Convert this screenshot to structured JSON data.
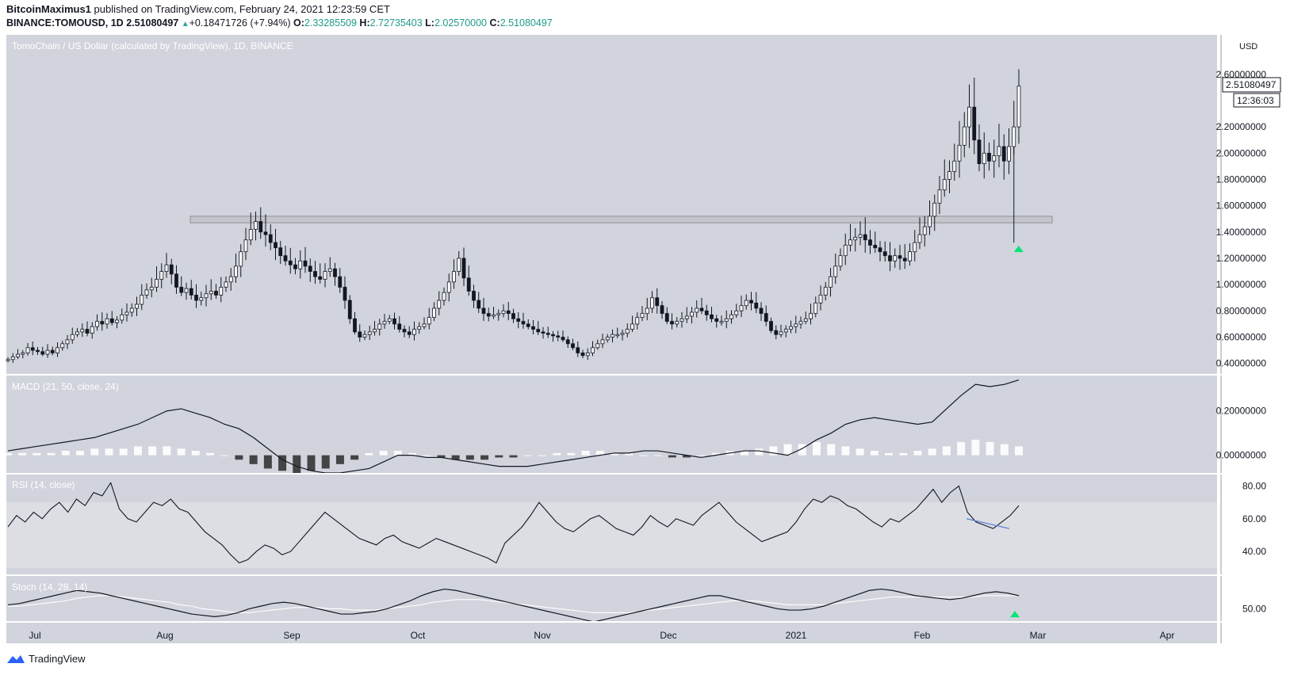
{
  "header": {
    "author": "BitcoinMaximus1",
    "published_text": "published on TradingView.com, February 24, 2021 12:23:59 CET",
    "symbol": "BINANCE:TOMOUSD, 1D",
    "last": "2.51080497",
    "change": "+0.18471726 (+7.94%)",
    "o_label": "O:",
    "o": "2.33285509",
    "h_label": "H:",
    "h": "2.72735403",
    "l_label": "L:",
    "l": "2.02570000",
    "c_label": "C:",
    "c": "2.51080497"
  },
  "footer": {
    "brand": "TradingView"
  },
  "colors": {
    "main_bg": "#d1d4dc",
    "macd_bg": "#d1d4dc",
    "rsi_bg": "#d1d4dc",
    "rsi_band": "#dcdee4",
    "stoch_bg": "#d1d4dc",
    "resistance_box": "#c4c6cc",
    "buy_arrow": "#00e676",
    "trendline": "#5b7fd6"
  },
  "chart_data": [
    {
      "type": "candlestick",
      "title": "TomoChain / US Dollar (calculated by TradingView), 1D, BINANCE",
      "currency_label": "USD",
      "price_label": "2.51080497",
      "countdown_label": "12:36:03",
      "y_ticks": [
        "0.40000000",
        "0.60000000",
        "0.80000000",
        "1.00000000",
        "1.20000000",
        "1.40000000",
        "1.60000000",
        "1.80000000",
        "2.00000000",
        "2.20000000",
        "2.60000000"
      ],
      "ylim": [
        0.32,
        2.9
      ],
      "x_labels": [
        "Jul",
        "Aug",
        "Sep",
        "Oct",
        "Nov",
        "Dec",
        "2021",
        "Feb",
        "Mar",
        "Apr"
      ],
      "resistance_zone": [
        1.47,
        1.52
      ],
      "close_series": [
        0.43,
        0.45,
        0.47,
        0.48,
        0.52,
        0.5,
        0.49,
        0.47,
        0.5,
        0.48,
        0.52,
        0.55,
        0.58,
        0.62,
        0.64,
        0.66,
        0.63,
        0.68,
        0.72,
        0.7,
        0.74,
        0.71,
        0.73,
        0.77,
        0.79,
        0.82,
        0.85,
        0.92,
        0.96,
        0.98,
        1.04,
        1.1,
        1.15,
        1.08,
        0.98,
        0.94,
        0.97,
        0.92,
        0.88,
        0.9,
        0.93,
        0.95,
        0.92,
        0.98,
        1.02,
        1.06,
        1.14,
        1.25,
        1.34,
        1.42,
        1.48,
        1.4,
        1.38,
        1.32,
        1.28,
        1.22,
        1.18,
        1.15,
        1.12,
        1.18,
        1.14,
        1.1,
        1.06,
        1.04,
        1.1,
        1.12,
        1.06,
        0.98,
        0.88,
        0.74,
        0.64,
        0.6,
        0.62,
        0.64,
        0.66,
        0.7,
        0.72,
        0.74,
        0.7,
        0.66,
        0.64,
        0.62,
        0.66,
        0.68,
        0.7,
        0.75,
        0.82,
        0.88,
        0.94,
        1.02,
        1.1,
        1.2,
        1.05,
        0.95,
        0.88,
        0.82,
        0.78,
        0.76,
        0.77,
        0.78,
        0.8,
        0.78,
        0.74,
        0.72,
        0.7,
        0.68,
        0.66,
        0.64,
        0.63,
        0.62,
        0.61,
        0.6,
        0.58,
        0.55,
        0.52,
        0.48,
        0.46,
        0.48,
        0.52,
        0.55,
        0.58,
        0.6,
        0.62,
        0.62,
        0.63,
        0.66,
        0.7,
        0.75,
        0.78,
        0.82,
        0.9,
        0.84,
        0.78,
        0.72,
        0.7,
        0.72,
        0.74,
        0.76,
        0.79,
        0.82,
        0.8,
        0.77,
        0.74,
        0.72,
        0.72,
        0.74,
        0.77,
        0.8,
        0.84,
        0.88,
        0.86,
        0.82,
        0.78,
        0.72,
        0.65,
        0.62,
        0.64,
        0.66,
        0.68,
        0.7,
        0.72,
        0.74,
        0.78,
        0.86,
        0.92,
        0.98,
        1.06,
        1.14,
        1.22,
        1.3,
        1.34,
        1.36,
        1.38,
        1.34,
        1.3,
        1.28,
        1.25,
        1.22,
        1.18,
        1.22,
        1.2,
        1.18,
        1.25,
        1.32,
        1.38,
        1.44,
        1.52,
        1.62,
        1.72,
        1.8,
        1.86,
        1.94,
        2.06,
        2.2,
        2.35,
        2.1,
        1.92,
        2.0,
        1.94,
        1.98,
        2.05,
        1.94,
        2.05,
        2.2,
        2.51
      ],
      "overlay_labels": {
        "arrow_price": 1.32,
        "arrow_label_text": ""
      }
    },
    {
      "type": "line",
      "title": "MACD (21, 50, close, 24)",
      "y_ticks": [
        "0.20000000",
        "0.00000000"
      ],
      "ylim": [
        -0.08,
        0.36
      ],
      "macd_series": [
        0.02,
        0.03,
        0.04,
        0.05,
        0.06,
        0.07,
        0.08,
        0.1,
        0.12,
        0.14,
        0.17,
        0.2,
        0.21,
        0.19,
        0.17,
        0.14,
        0.12,
        0.08,
        0.03,
        -0.02,
        -0.05,
        -0.07,
        -0.08,
        -0.08,
        -0.07,
        -0.06,
        -0.03,
        0.0,
        0.0,
        -0.01,
        -0.01,
        -0.02,
        -0.03,
        -0.04,
        -0.05,
        -0.05,
        -0.05,
        -0.04,
        -0.03,
        -0.02,
        -0.01,
        0.0,
        0.01,
        0.01,
        0.02,
        0.02,
        0.01,
        0.0,
        -0.01,
        0.0,
        0.01,
        0.02,
        0.02,
        0.01,
        0.0,
        0.03,
        0.07,
        0.1,
        0.14,
        0.16,
        0.17,
        0.16,
        0.15,
        0.14,
        0.15,
        0.21,
        0.27,
        0.32,
        0.31,
        0.32,
        0.34
      ],
      "hist_series": [
        0.01,
        0.01,
        0.01,
        0.01,
        0.02,
        0.02,
        0.03,
        0.03,
        0.03,
        0.04,
        0.04,
        0.04,
        0.03,
        0.02,
        0.01,
        0.0,
        -0.02,
        -0.04,
        -0.06,
        -0.07,
        -0.08,
        -0.07,
        -0.06,
        -0.04,
        -0.02,
        0.01,
        0.02,
        0.02,
        0.01,
        0.0,
        -0.01,
        -0.02,
        -0.02,
        -0.02,
        -0.01,
        -0.01,
        0.0,
        0.0,
        0.01,
        0.01,
        0.02,
        0.02,
        0.01,
        0.01,
        0.0,
        0.0,
        -0.01,
        -0.01,
        0.0,
        0.01,
        0.02,
        0.02,
        0.03,
        0.04,
        0.05,
        0.05,
        0.06,
        0.05,
        0.04,
        0.03,
        0.02,
        0.01,
        0.01,
        0.02,
        0.03,
        0.04,
        0.06,
        0.07,
        0.06,
        0.05,
        0.04
      ]
    },
    {
      "type": "line",
      "title": "RSI (14, close)",
      "y_ticks": [
        "80.00",
        "60.00",
        "40.00"
      ],
      "ylim": [
        26,
        87
      ],
      "band": [
        30,
        70
      ],
      "series": [
        55,
        62,
        58,
        64,
        60,
        66,
        70,
        64,
        72,
        68,
        76,
        74,
        82,
        66,
        60,
        58,
        64,
        70,
        68,
        72,
        66,
        64,
        58,
        52,
        48,
        44,
        38,
        33,
        35,
        40,
        44,
        42,
        38,
        40,
        46,
        52,
        58,
        64,
        60,
        56,
        52,
        48,
        46,
        44,
        48,
        50,
        46,
        44,
        42,
        45,
        48,
        46,
        44,
        42,
        40,
        38,
        36,
        33,
        45,
        50,
        55,
        62,
        70,
        64,
        58,
        54,
        52,
        56,
        60,
        62,
        58,
        54,
        52,
        50,
        55,
        62,
        58,
        55,
        60,
        58,
        56,
        62,
        66,
        70,
        64,
        58,
        54,
        50,
        46,
        48,
        50,
        52,
        58,
        66,
        72,
        70,
        74,
        72,
        68,
        66,
        62,
        58,
        55,
        60,
        58,
        62,
        66,
        72,
        78,
        70,
        76,
        80,
        64,
        58,
        56,
        54,
        58,
        62,
        68
      ],
      "trend_from": [
        60,
        58
      ],
      "trend_to": [
        1.0,
        54
      ]
    },
    {
      "type": "line",
      "title": "Stoch (14, 28, 14)",
      "y_ticks": [
        "50.00"
      ],
      "ylim": [
        40,
        75
      ],
      "k_series": [
        53,
        54,
        56,
        58,
        60,
        62,
        64,
        63,
        62,
        60,
        58,
        56,
        54,
        52,
        50,
        48,
        46,
        45,
        44,
        45,
        47,
        50,
        52,
        54,
        55,
        54,
        52,
        50,
        48,
        46,
        46,
        47,
        48,
        50,
        53,
        56,
        60,
        63,
        65,
        64,
        62,
        60,
        58,
        56,
        54,
        52,
        50,
        48,
        46,
        44,
        42,
        40,
        42,
        44,
        46,
        48,
        50,
        52,
        54,
        56,
        58,
        60,
        60,
        58,
        56,
        54,
        52,
        50,
        49,
        49,
        50,
        52,
        55,
        58,
        61,
        64,
        65,
        64,
        62,
        60,
        59,
        58,
        57,
        58,
        60,
        62,
        63,
        62,
        60
      ],
      "d_series": [
        52,
        52,
        53,
        54,
        55,
        56,
        58,
        59,
        60,
        60,
        59,
        58,
        57,
        56,
        55,
        53,
        52,
        50,
        49,
        48,
        47,
        47,
        48,
        49,
        50,
        51,
        51,
        51,
        50,
        50,
        49,
        49,
        49,
        50,
        51,
        52,
        53,
        55,
        56,
        57,
        57,
        57,
        56,
        55,
        54,
        53,
        52,
        51,
        50,
        49,
        48,
        47,
        47,
        47,
        47,
        48,
        49,
        50,
        51,
        52,
        53,
        54,
        55,
        56,
        56,
        56,
        55,
        54,
        53,
        53,
        53,
        53,
        54,
        55,
        56,
        57,
        58,
        59,
        59,
        59,
        59,
        59,
        59,
        59,
        59,
        60,
        60,
        60,
        60
      ],
      "buy_signal_index": -1
    }
  ]
}
